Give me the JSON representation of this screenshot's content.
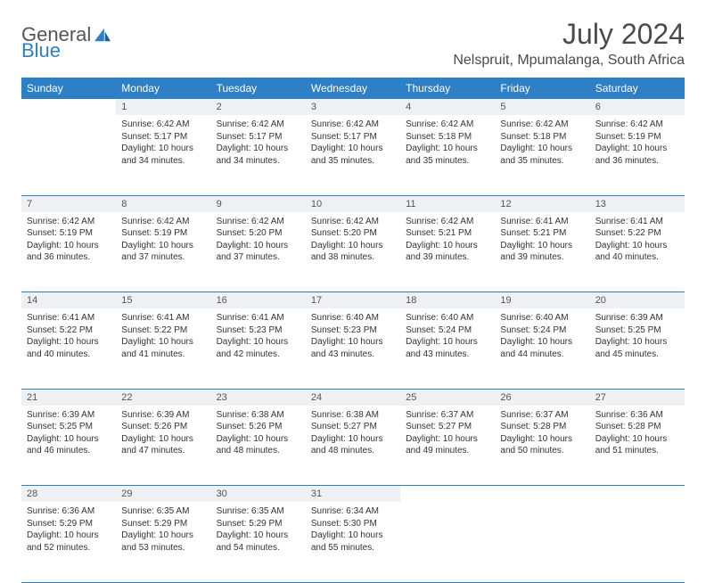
{
  "brand": {
    "part1": "General",
    "part2": "Blue"
  },
  "title": "July 2024",
  "location": "Nelspruit, Mpumalanga, South Africa",
  "colors": {
    "header_bg": "#2d7fc6",
    "daynum_bg": "#eef1f3",
    "border": "#2d7fc6",
    "text": "#333333"
  },
  "weekdays": [
    "Sunday",
    "Monday",
    "Tuesday",
    "Wednesday",
    "Thursday",
    "Friday",
    "Saturday"
  ],
  "weeks": [
    {
      "nums": [
        "",
        "1",
        "2",
        "3",
        "4",
        "5",
        "6"
      ],
      "cells": [
        "",
        "Sunrise: 6:42 AM\nSunset: 5:17 PM\nDaylight: 10 hours and 34 minutes.",
        "Sunrise: 6:42 AM\nSunset: 5:17 PM\nDaylight: 10 hours and 34 minutes.",
        "Sunrise: 6:42 AM\nSunset: 5:17 PM\nDaylight: 10 hours and 35 minutes.",
        "Sunrise: 6:42 AM\nSunset: 5:18 PM\nDaylight: 10 hours and 35 minutes.",
        "Sunrise: 6:42 AM\nSunset: 5:18 PM\nDaylight: 10 hours and 35 minutes.",
        "Sunrise: 6:42 AM\nSunset: 5:19 PM\nDaylight: 10 hours and 36 minutes."
      ]
    },
    {
      "nums": [
        "7",
        "8",
        "9",
        "10",
        "11",
        "12",
        "13"
      ],
      "cells": [
        "Sunrise: 6:42 AM\nSunset: 5:19 PM\nDaylight: 10 hours and 36 minutes.",
        "Sunrise: 6:42 AM\nSunset: 5:19 PM\nDaylight: 10 hours and 37 minutes.",
        "Sunrise: 6:42 AM\nSunset: 5:20 PM\nDaylight: 10 hours and 37 minutes.",
        "Sunrise: 6:42 AM\nSunset: 5:20 PM\nDaylight: 10 hours and 38 minutes.",
        "Sunrise: 6:42 AM\nSunset: 5:21 PM\nDaylight: 10 hours and 39 minutes.",
        "Sunrise: 6:41 AM\nSunset: 5:21 PM\nDaylight: 10 hours and 39 minutes.",
        "Sunrise: 6:41 AM\nSunset: 5:22 PM\nDaylight: 10 hours and 40 minutes."
      ]
    },
    {
      "nums": [
        "14",
        "15",
        "16",
        "17",
        "18",
        "19",
        "20"
      ],
      "cells": [
        "Sunrise: 6:41 AM\nSunset: 5:22 PM\nDaylight: 10 hours and 40 minutes.",
        "Sunrise: 6:41 AM\nSunset: 5:22 PM\nDaylight: 10 hours and 41 minutes.",
        "Sunrise: 6:41 AM\nSunset: 5:23 PM\nDaylight: 10 hours and 42 minutes.",
        "Sunrise: 6:40 AM\nSunset: 5:23 PM\nDaylight: 10 hours and 43 minutes.",
        "Sunrise: 6:40 AM\nSunset: 5:24 PM\nDaylight: 10 hours and 43 minutes.",
        "Sunrise: 6:40 AM\nSunset: 5:24 PM\nDaylight: 10 hours and 44 minutes.",
        "Sunrise: 6:39 AM\nSunset: 5:25 PM\nDaylight: 10 hours and 45 minutes."
      ]
    },
    {
      "nums": [
        "21",
        "22",
        "23",
        "24",
        "25",
        "26",
        "27"
      ],
      "cells": [
        "Sunrise: 6:39 AM\nSunset: 5:25 PM\nDaylight: 10 hours and 46 minutes.",
        "Sunrise: 6:39 AM\nSunset: 5:26 PM\nDaylight: 10 hours and 47 minutes.",
        "Sunrise: 6:38 AM\nSunset: 5:26 PM\nDaylight: 10 hours and 48 minutes.",
        "Sunrise: 6:38 AM\nSunset: 5:27 PM\nDaylight: 10 hours and 48 minutes.",
        "Sunrise: 6:37 AM\nSunset: 5:27 PM\nDaylight: 10 hours and 49 minutes.",
        "Sunrise: 6:37 AM\nSunset: 5:28 PM\nDaylight: 10 hours and 50 minutes.",
        "Sunrise: 6:36 AM\nSunset: 5:28 PM\nDaylight: 10 hours and 51 minutes."
      ]
    },
    {
      "nums": [
        "28",
        "29",
        "30",
        "31",
        "",
        "",
        ""
      ],
      "cells": [
        "Sunrise: 6:36 AM\nSunset: 5:29 PM\nDaylight: 10 hours and 52 minutes.",
        "Sunrise: 6:35 AM\nSunset: 5:29 PM\nDaylight: 10 hours and 53 minutes.",
        "Sunrise: 6:35 AM\nSunset: 5:29 PM\nDaylight: 10 hours and 54 minutes.",
        "Sunrise: 6:34 AM\nSunset: 5:30 PM\nDaylight: 10 hours and 55 minutes.",
        "",
        "",
        ""
      ]
    }
  ]
}
